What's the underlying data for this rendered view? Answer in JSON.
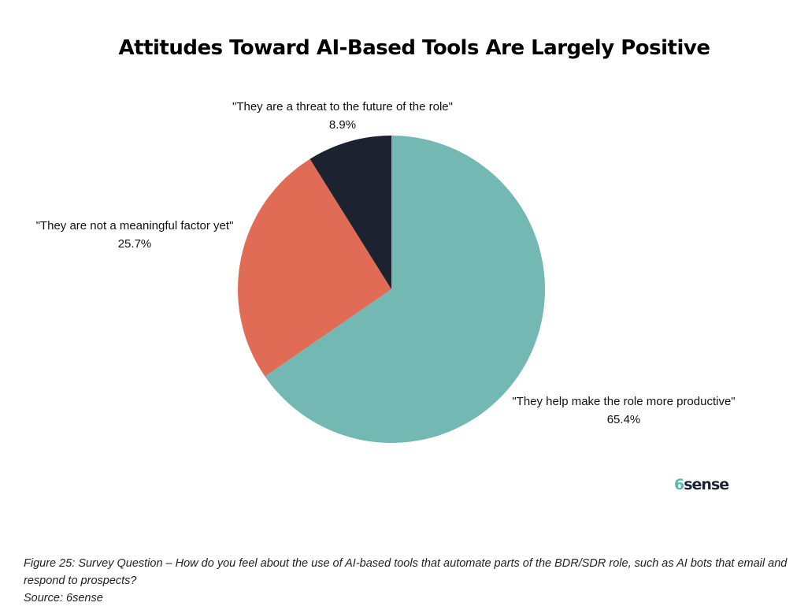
{
  "chart_data": {
    "type": "pie",
    "title": "Attitudes Toward AI-Based Tools Are Largely Positive",
    "slices": [
      {
        "label": "\"They help make the role more productive\"",
        "value": 65.4,
        "display": "65.4%",
        "color": "#74b8b4"
      },
      {
        "label": "\"They are not a meaningful factor yet\"",
        "value": 25.7,
        "display": "25.7%",
        "color": "#e06c55"
      },
      {
        "label": "\"They are a threat to the future of the role\"",
        "value": 8.9,
        "display": "8.9%",
        "color": "#1c2230"
      }
    ]
  },
  "logo": {
    "mark": "6",
    "text": "sense"
  },
  "caption": {
    "figure": "Figure 25: Survey Question – How do you feel about the use of AI-based tools that automate parts of the BDR/SDR role, such as AI bots that email and respond to prospects?",
    "source": "Source: 6sense"
  }
}
